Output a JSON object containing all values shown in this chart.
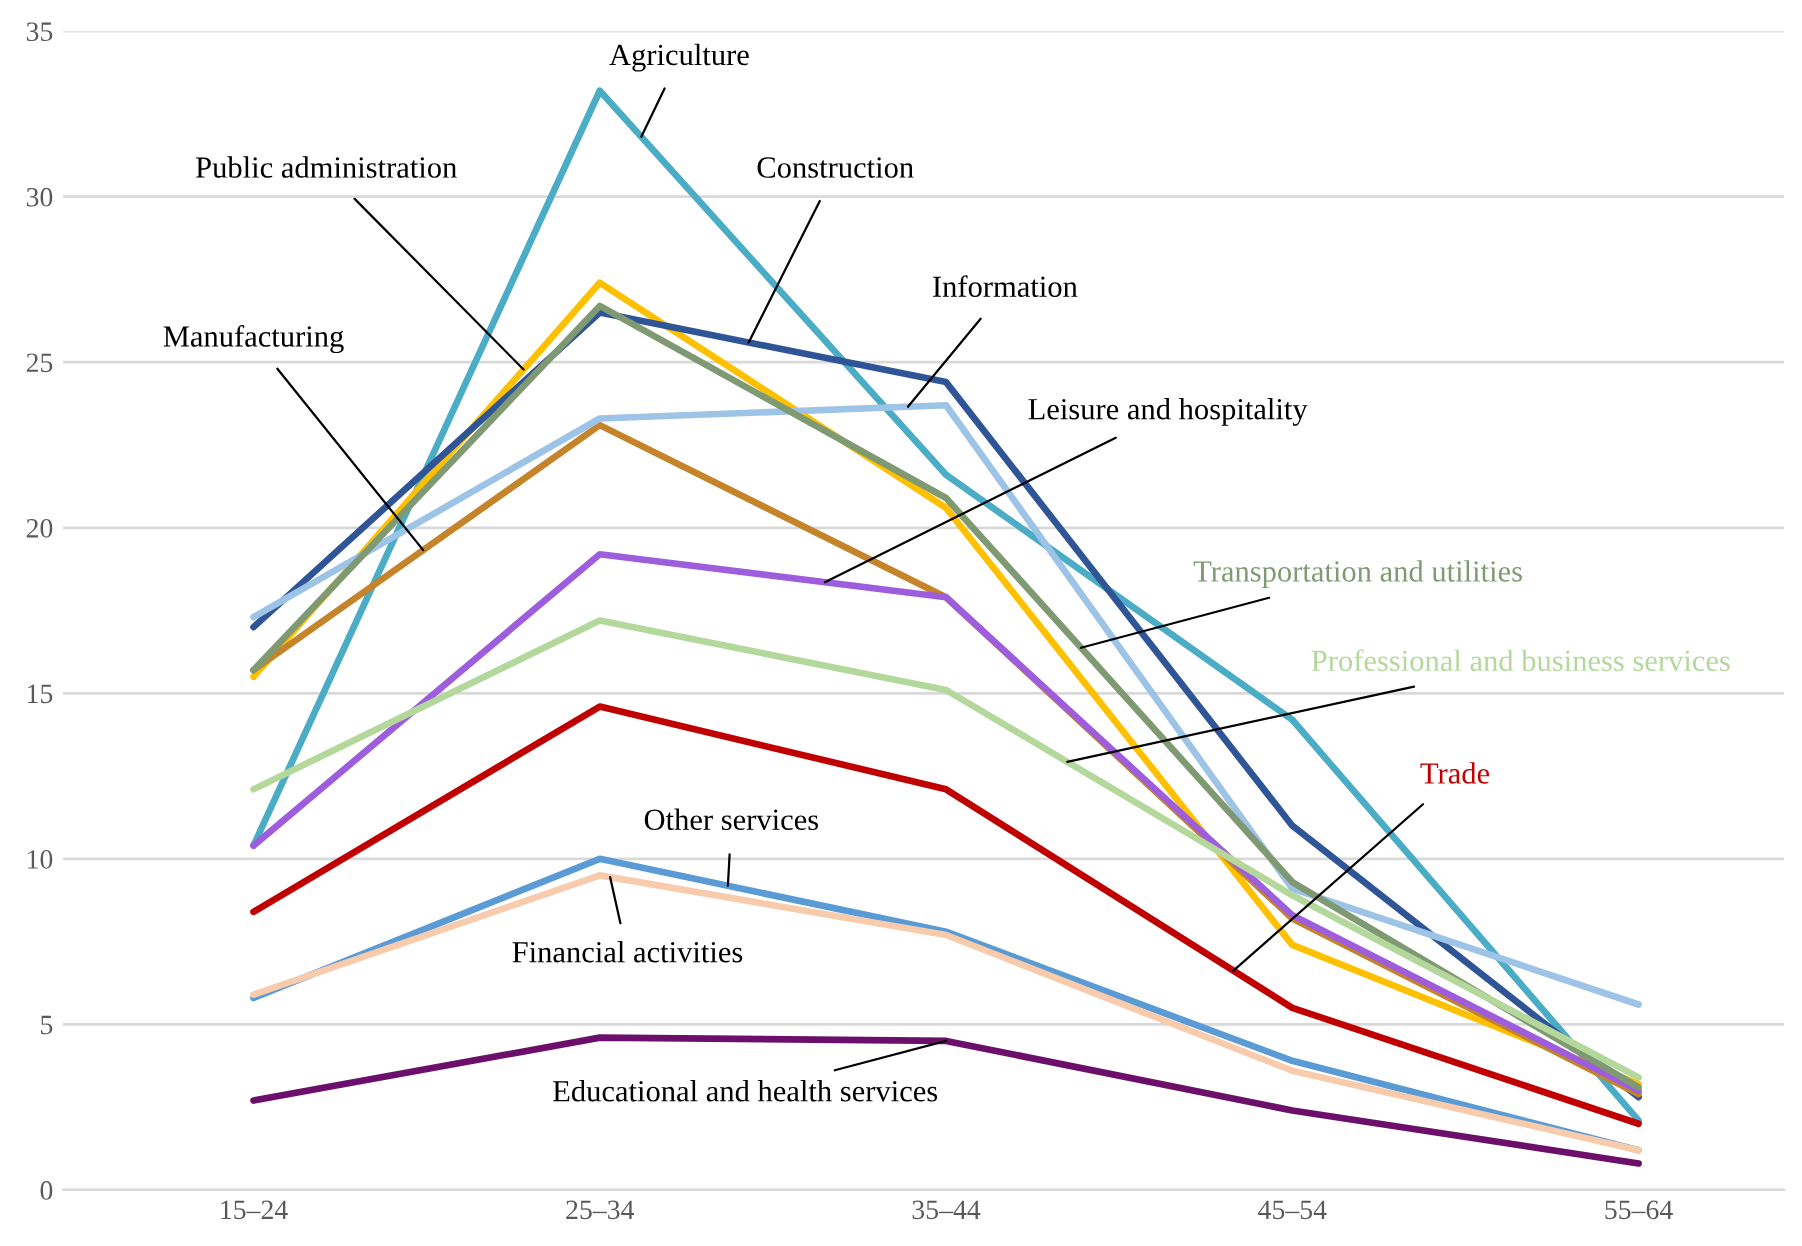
{
  "chart_data": {
    "type": "line",
    "categories": [
      "15–24",
      "25–34",
      "35–44",
      "45–54",
      "55–64"
    ],
    "ylim": [
      0,
      35
    ],
    "yticks": [
      0,
      5,
      10,
      15,
      20,
      25,
      30,
      35
    ],
    "grid": "y",
    "legend": false,
    "series": [
      {
        "name": "Agriculture",
        "color": "#4bacc6",
        "values": [
          10.4,
          33.2,
          21.6,
          14.2,
          2.1
        ]
      },
      {
        "name": "Public administration",
        "color": "#ffc000",
        "values": [
          15.5,
          27.4,
          20.6,
          7.4,
          3.2
        ]
      },
      {
        "name": "Construction",
        "color": "#2f5597",
        "values": [
          17.0,
          26.5,
          24.4,
          11.0,
          2.8
        ]
      },
      {
        "name": "Manufacturing",
        "color": "#c5832a",
        "values": [
          15.7,
          23.1,
          17.9,
          8.2,
          2.9
        ]
      },
      {
        "name": "Information",
        "color": "#9dc3e6",
        "values": [
          17.3,
          23.3,
          23.7,
          9.1,
          5.6
        ]
      },
      {
        "name": "Leisure and hospitality",
        "color": "#9e5ddc",
        "values": [
          10.4,
          19.2,
          17.9,
          8.3,
          3.0
        ]
      },
      {
        "name": "Transportation and utilities",
        "color": "#7f9a72",
        "values": [
          15.7,
          26.7,
          20.9,
          9.3,
          3.1
        ]
      },
      {
        "name": "Professional and business services",
        "color": "#b4d89c",
        "values": [
          12.1,
          17.2,
          15.1,
          8.9,
          3.4
        ]
      },
      {
        "name": "Trade",
        "color": "#c00000",
        "values": [
          8.4,
          14.6,
          12.1,
          5.5,
          2.0
        ]
      },
      {
        "name": "Other services",
        "color": "#5b9bd5",
        "values": [
          5.8,
          10.0,
          7.8,
          3.9,
          1.2
        ]
      },
      {
        "name": "Financial activities",
        "color": "#f8cbad",
        "values": [
          5.9,
          9.5,
          7.7,
          3.6,
          1.2
        ]
      },
      {
        "name": "Educational and health services",
        "color": "#6b0f6b",
        "values": [
          2.7,
          4.6,
          4.5,
          2.4,
          0.8
        ]
      }
    ]
  }
}
